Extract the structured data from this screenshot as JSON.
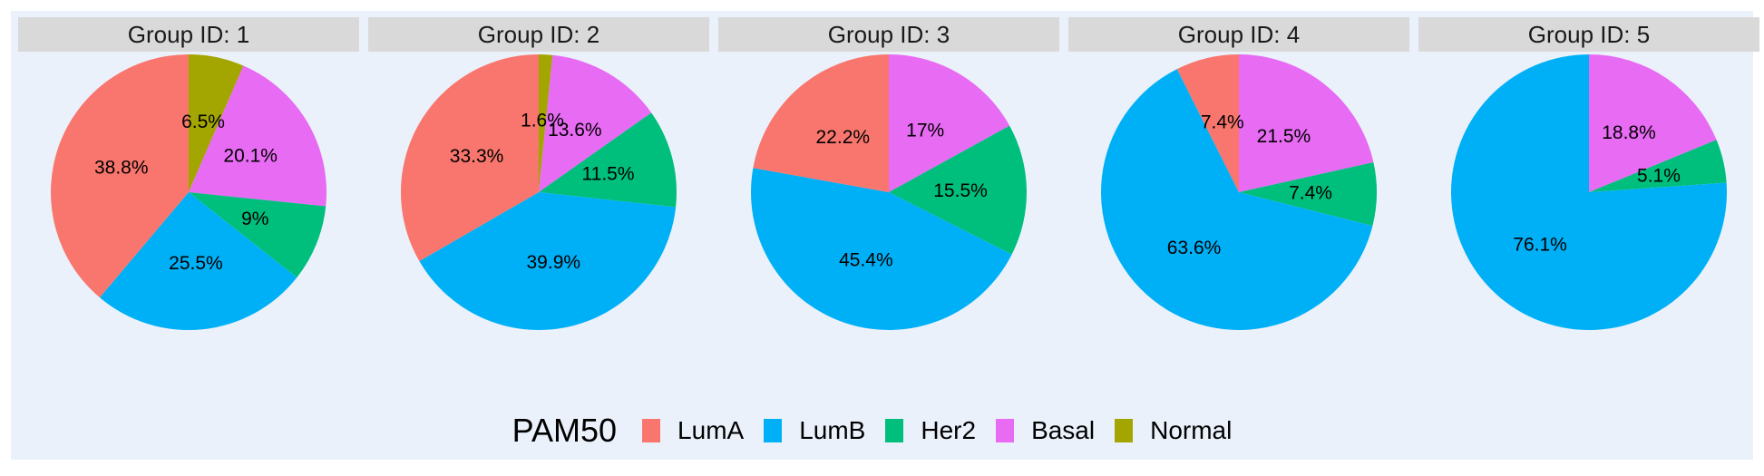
{
  "legend": {
    "title": "PAM50",
    "items": [
      {
        "label": "LumA",
        "color": "#F8766D"
      },
      {
        "label": "LumB",
        "color": "#00B0F6"
      },
      {
        "label": "Her2",
        "color": "#00BF7D"
      },
      {
        "label": "Basal",
        "color": "#E76BF3"
      },
      {
        "label": "Normal",
        "color": "#A3A500"
      }
    ]
  },
  "chart_data": [
    {
      "type": "pie",
      "title": "Group ID: 1",
      "categories": [
        "Normal",
        "Basal",
        "Her2",
        "LumB",
        "LumA"
      ],
      "values": [
        6.5,
        20.1,
        9,
        25.5,
        38.8
      ],
      "labels": [
        "6.5%",
        "20.1%",
        "9%",
        "25.5%",
        "38.8%"
      ]
    },
    {
      "type": "pie",
      "title": "Group ID: 2",
      "categories": [
        "Normal",
        "Basal",
        "Her2",
        "LumB",
        "LumA"
      ],
      "values": [
        1.6,
        13.6,
        11.5,
        39.9,
        33.3
      ],
      "labels": [
        "1.6%",
        "13.6%",
        "11.5%",
        "39.9%",
        "33.3%"
      ]
    },
    {
      "type": "pie",
      "title": "Group ID: 3",
      "categories": [
        "Basal",
        "Her2",
        "LumB",
        "LumA"
      ],
      "values": [
        17,
        15.5,
        45.4,
        22.2
      ],
      "labels": [
        "17%",
        "15.5%",
        "45.4%",
        "22.2%"
      ]
    },
    {
      "type": "pie",
      "title": "Group ID: 4",
      "categories": [
        "Basal",
        "Her2",
        "LumB",
        "LumA"
      ],
      "values": [
        21.5,
        7.4,
        63.6,
        7.4
      ],
      "labels": [
        "21.5%",
        "7.4%",
        "63.6%",
        "7.4%"
      ]
    },
    {
      "type": "pie",
      "title": "Group ID: 5",
      "categories": [
        "Basal",
        "Her2",
        "LumB"
      ],
      "values": [
        18.8,
        5.1,
        76.1
      ],
      "labels": [
        "18.8%",
        "5.1%",
        "76.1%"
      ]
    }
  ]
}
